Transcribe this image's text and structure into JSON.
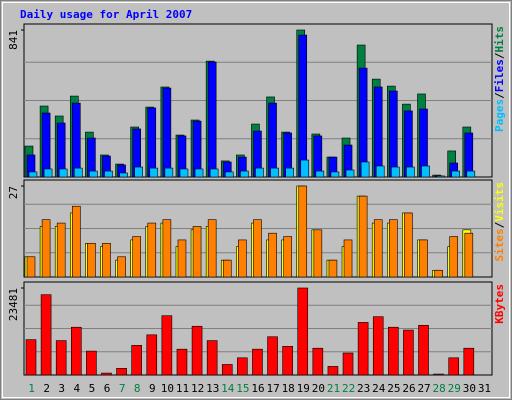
{
  "chart_data": {
    "type": "bar",
    "title": "Daily usage for April 2007",
    "title_color": "#0000ff",
    "categories": [
      "1",
      "2",
      "3",
      "4",
      "5",
      "6",
      "7",
      "8",
      "9",
      "10",
      "11",
      "12",
      "13",
      "14",
      "15",
      "16",
      "17",
      "18",
      "19",
      "20",
      "21",
      "22",
      "23",
      "24",
      "25",
      "26",
      "27",
      "28",
      "29",
      "30",
      "31"
    ],
    "category_colors": [
      "#008040",
      "#000000",
      "#000000",
      "#000000",
      "#000000",
      "#000000",
      "#008040",
      "#008040",
      "#000000",
      "#000000",
      "#000000",
      "#000000",
      "#000000",
      "#008040",
      "#008040",
      "#000000",
      "#000000",
      "#000000",
      "#000000",
      "#000000",
      "#008040",
      "#008040",
      "#000000",
      "#000000",
      "#000000",
      "#000000",
      "#000000",
      "#008040",
      "#008040",
      "#000000",
      "#000000"
    ],
    "legend_separator": "/",
    "grid": true,
    "panels": [
      {
        "ylim": [
          0,
          841
        ],
        "yticks": [
          841
        ],
        "series": [
          {
            "name": "Pages",
            "color": "#00c0ff",
            "values": [
              29,
              46,
              46,
              51,
              34,
              34,
              23,
              57,
              51,
              51,
              46,
              46,
              46,
              29,
              34,
              51,
              51,
              51,
              97,
              34,
              29,
              40,
              86,
              63,
              57,
              57,
              63,
              6,
              34,
              34,
              null
            ]
          },
          {
            "name": "Files",
            "color": "#0000ff",
            "values": [
              126,
              366,
              309,
              423,
              223,
              120,
              69,
              275,
              395,
              509,
              235,
              320,
              658,
              86,
              114,
              263,
              423,
              252,
              812,
              235,
              114,
              183,
              623,
              515,
              492,
              378,
              389,
              6,
              80,
              252,
              null
            ]
          },
          {
            "name": "Hits",
            "color": "#008040",
            "values": [
              177,
              406,
              349,
              463,
              257,
              126,
              74,
              286,
              400,
              515,
              240,
              326,
              663,
              92,
              126,
              303,
              458,
              257,
              841,
              246,
              114,
              223,
              755,
              560,
              520,
              417,
              475,
              11,
              149,
              286,
              null
            ]
          }
        ]
      },
      {
        "ylim": [
          0,
          27
        ],
        "yticks": [
          27
        ],
        "series": [
          {
            "name": "Sites",
            "color": "#ff8000",
            "values": [
              6,
              17,
              16,
              21,
              10,
              10,
              6,
              12,
              16,
              17,
              11,
              15,
              17,
              5,
              11,
              17,
              13,
              12,
              27,
              14,
              5,
              11,
              24,
              17,
              17,
              19,
              11,
              2,
              12,
              13,
              null
            ]
          },
          {
            "name": "Visits",
            "color": "#ffff00",
            "values": [
              6,
              15,
              15,
              19,
              10,
              9,
              5,
              11,
              15,
              16,
              9,
              14,
              15,
              5,
              9,
              16,
              11,
              11,
              27,
              14,
              5,
              9,
              24,
              16,
              16,
              19,
              11,
              2,
              9,
              14,
              null
            ]
          }
        ]
      },
      {
        "ylim": [
          0,
          23481
        ],
        "yticks": [
          23481
        ],
        "series": [
          {
            "name": "KBytes",
            "color": "#ff0000",
            "values": [
              9550,
              21670,
              9290,
              12900,
              6450,
              520,
              1810,
              8000,
              10840,
              16000,
              6970,
              13160,
              9290,
              2840,
              4640,
              6970,
              10320,
              7740,
              23481,
              7230,
              2320,
              5940,
              14190,
              15740,
              12900,
              12130,
              13420,
              260,
              4640,
              7230,
              null
            ]
          }
        ]
      }
    ]
  }
}
